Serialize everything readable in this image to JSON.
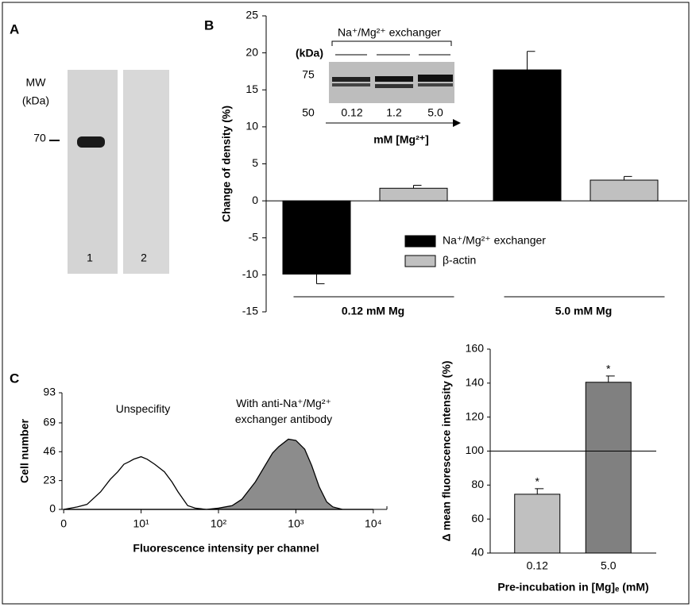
{
  "panel_labels": [
    "A",
    "B",
    "C"
  ],
  "panel_a": {
    "mw_label": [
      "MW",
      "(kDa)"
    ],
    "marker": 70,
    "lanes": [
      "1",
      "2"
    ]
  },
  "chart_data": [
    {
      "type": "bar",
      "y_label": "Change of density (%)",
      "categories": [
        "0.12 mM Mg",
        "5.0 mM Mg"
      ],
      "series": [
        {
          "name": "Na⁺/Mg²⁺ exchanger",
          "color": "#000000",
          "values": [
            -9.9,
            17.7
          ],
          "errors": [
            1.3,
            2.5
          ]
        },
        {
          "name": "β-actin",
          "color": "#c0c0c0",
          "values": [
            1.7,
            2.8
          ],
          "errors": [
            0.4,
            0.5
          ]
        }
      ],
      "ylim": [
        -15,
        25
      ],
      "yticks": [
        -15,
        -10,
        -5,
        0,
        5,
        10,
        15,
        20,
        25
      ],
      "inset": {
        "title": "Na⁺/Mg²⁺ exchanger",
        "unit": "(kDa)",
        "markers": [
          75,
          50
        ],
        "lanes": [
          "0.12",
          "1.2",
          "5.0"
        ],
        "x_label": "mM [Mg²⁺]"
      }
    },
    {
      "type": "line",
      "x_label": "Fluorescence intensity per channel",
      "y_label": "Cell number",
      "log_x": true,
      "x": [
        1,
        1.5,
        2,
        3,
        4,
        5,
        6,
        7,
        8,
        10,
        12,
        15,
        20,
        25,
        30,
        40,
        50,
        70,
        100,
        150,
        200,
        300,
        400,
        500,
        600,
        800,
        1000,
        1300,
        1600,
        2000,
        2500,
        3000,
        4000,
        6000,
        10000
      ],
      "series": [
        {
          "name": "Unspecifity",
          "color": "#000000",
          "fill": "none",
          "values": [
            0,
            2,
            4,
            14,
            24,
            30,
            36,
            38,
            40,
            42,
            40,
            36,
            30,
            22,
            14,
            3,
            1,
            0,
            0,
            0,
            0,
            0,
            0,
            0,
            0,
            0,
            0,
            0,
            0,
            0,
            0,
            0,
            0,
            0,
            0
          ]
        },
        {
          "name": "With anti-Na⁺/Mg²⁺ exchanger antibody",
          "color": "#000000",
          "fill": "#8c8c8c",
          "values": [
            0,
            0,
            0,
            0,
            0,
            0,
            0,
            0,
            0,
            0,
            0,
            0,
            0,
            0,
            0,
            0,
            0,
            0,
            1,
            3,
            8,
            22,
            35,
            45,
            50,
            56,
            55,
            48,
            35,
            18,
            6,
            2,
            0,
            0,
            0
          ]
        }
      ],
      "xlim": [
        0.95,
        15000
      ],
      "xticks": [
        {
          "value": 1,
          "label": "0"
        },
        {
          "value": 10,
          "label": "10¹"
        },
        {
          "value": 100,
          "label": "10²"
        },
        {
          "value": 1000,
          "label": "10³"
        },
        {
          "value": 10000,
          "label": "10⁴"
        }
      ],
      "ylim": [
        0,
        93
      ],
      "yticks": [
        0,
        23,
        46,
        69,
        93
      ]
    },
    {
      "type": "bar",
      "y_label": "Δ mean fluorescence intensity (%)",
      "x_label": "Pre-incubation in [Mg]ₑ (mM)",
      "categories": [
        "0.12",
        "5.0"
      ],
      "values": [
        74.6,
        140.5
      ],
      "errors": [
        3.3,
        3.7
      ],
      "colors": [
        "#c0c0c0",
        "#808080"
      ],
      "annotations": [
        "*",
        "*"
      ],
      "reference_line": 100,
      "ylim": [
        40,
        160
      ],
      "yticks": [
        40,
        60,
        80,
        100,
        120,
        140,
        160
      ]
    }
  ]
}
